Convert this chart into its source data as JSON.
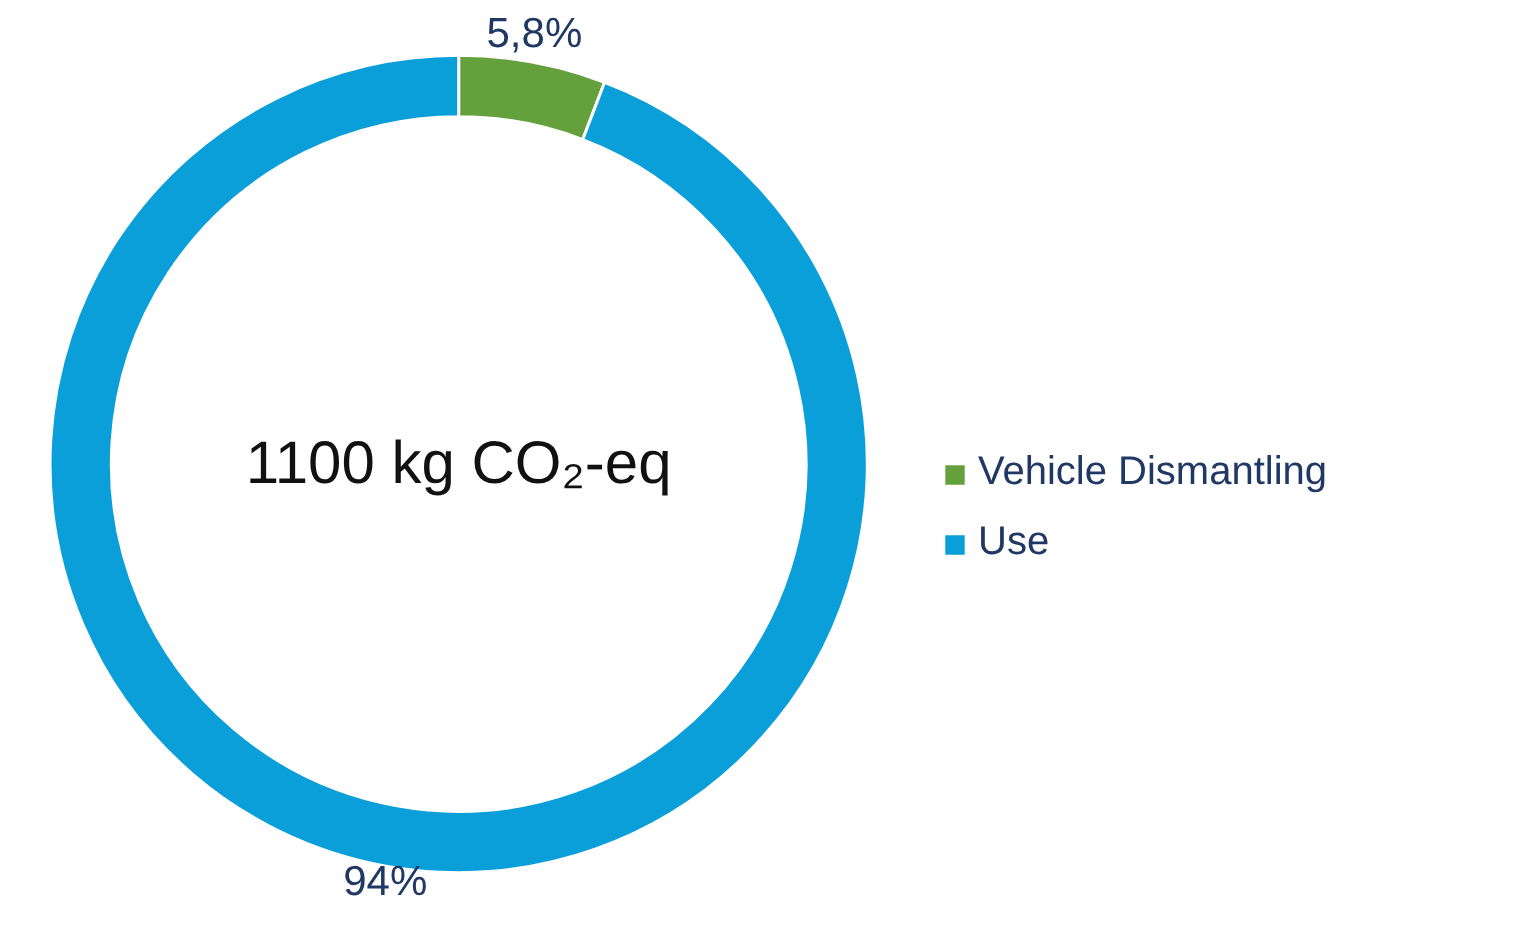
{
  "chart_data": {
    "type": "donut",
    "categories": [
      "Vehicle Dismantling",
      "Use"
    ],
    "values": [
      5.8,
      94
    ],
    "colors": [
      "#64a03c",
      "#0a9fd8"
    ],
    "value_labels": [
      "5,8%",
      "94%"
    ],
    "annotations": [
      "1100 kg CO₂-eq"
    ],
    "legend": "right"
  }
}
